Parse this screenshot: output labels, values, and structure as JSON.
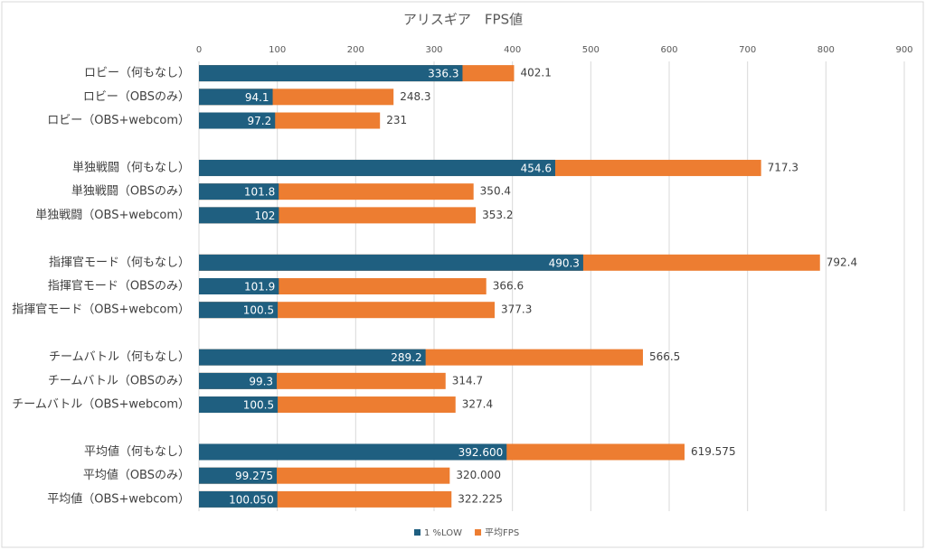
{
  "chart_data": {
    "type": "overlapped-bar",
    "orientation": "horizontal",
    "title": "アリスギア　FPS値",
    "categories": [
      "ロビー（何もなし）",
      "ロビー（OBSのみ）",
      "ロビー（OBS+webcom）",
      null,
      "単独戦闘（何もなし）",
      "単独戦闘（OBSのみ）",
      "単独戦闘（OBS+webcom）",
      null,
      "指揮官モード（何もなし）",
      "指揮官モード（OBSのみ）",
      "指揮官モード（OBS+webcom）",
      null,
      "チームバトル（何もなし）",
      "チームバトル（OBSのみ）",
      "チームバトル（OBS+webcom）",
      null,
      "平均値（何もなし）",
      "平均値（OBSのみ）",
      "平均値（OBS+webcom）"
    ],
    "series": [
      {
        "name": "1 %LOW",
        "color": "#1f5f80",
        "values": [
          336.3,
          94.1,
          97.2,
          null,
          454.6,
          101.8,
          102,
          null,
          490.3,
          101.9,
          100.5,
          null,
          289.2,
          99.3,
          100.5,
          null,
          392.6,
          99.275,
          100.05
        ],
        "value_labels": [
          "336.3",
          "94.1",
          "97.2",
          null,
          "454.6",
          "101.8",
          "102",
          null,
          "490.3",
          "101.9",
          "100.5",
          null,
          "289.2",
          "99.3",
          "100.5",
          null,
          "392.600",
          "99.275",
          "100.050"
        ]
      },
      {
        "name": "平均FPS",
        "color": "#ed7d31",
        "values": [
          402.1,
          248.3,
          231,
          null,
          717.3,
          350.4,
          353.2,
          null,
          792.4,
          366.6,
          377.3,
          null,
          566.5,
          314.7,
          327.4,
          null,
          619.575,
          320,
          322.225
        ],
        "value_labels": [
          "402.1",
          "248.3",
          "231",
          null,
          "717.3",
          "350.4",
          "353.2",
          null,
          "792.4",
          "366.6",
          "377.3",
          null,
          "566.5",
          "314.7",
          "327.4",
          null,
          "619.575",
          "320.000",
          "322.225"
        ]
      }
    ],
    "xlim": [
      0,
      900
    ],
    "xticks": [
      0,
      100,
      200,
      300,
      400,
      500,
      600,
      700,
      800,
      900
    ],
    "grid": true,
    "legend": "bottom"
  }
}
